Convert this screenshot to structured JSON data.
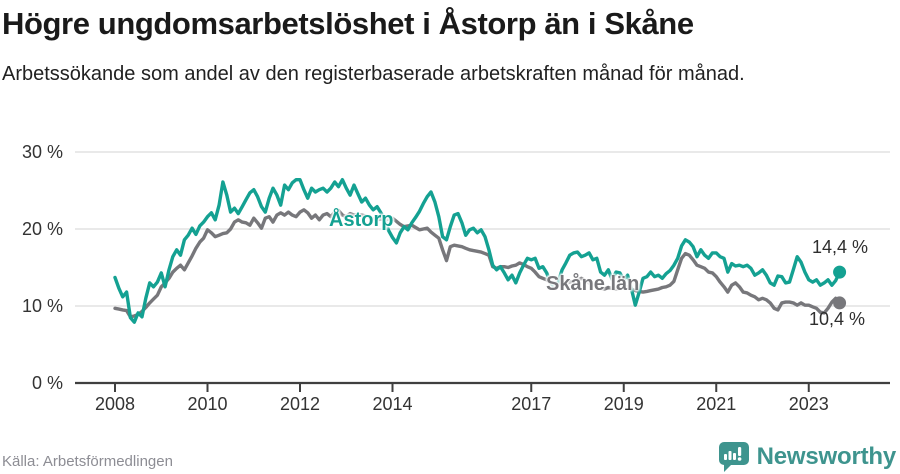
{
  "page": {
    "title": "Högre ungdomsarbetslöshet i Åstorp än i Skåne",
    "subtitle": "Arbetssökande som andel av den registerbaserade arbetskraften månad för månad.",
    "source": "Källa: Arbetsförmedlingen",
    "brand": "Newsworthy"
  },
  "colors": {
    "astorp": "#14a192",
    "skane": "#77777b",
    "grid": "#dcdcdc",
    "axis": "#3f3f3f",
    "tick_text": "#333333",
    "logo": "#3e948e"
  },
  "chart_data": {
    "type": "line",
    "title": "Högre ungdomsarbetslöshet i Åstorp än i Skåne",
    "subtitle": "Arbetssökande som andel av den registerbaserade arbetskraften månad för månad.",
    "x_unit": "month",
    "x_start": "2008-01",
    "x_end": "2023-09",
    "ylim": [
      0,
      30
    ],
    "grid": "horizontal",
    "legend_position": "inline-labels",
    "x_ticks": [
      {
        "year": 2008,
        "label": "2008"
      },
      {
        "year": 2010,
        "label": "2010"
      },
      {
        "year": 2012,
        "label": "2012"
      },
      {
        "year": 2014,
        "label": "2014"
      },
      {
        "year": 2017,
        "label": "2017"
      },
      {
        "year": 2019,
        "label": "2019"
      },
      {
        "year": 2021,
        "label": "2021"
      },
      {
        "year": 2023,
        "label": "2023"
      }
    ],
    "y_ticks": [
      {
        "value": 0,
        "label": "0 %"
      },
      {
        "value": 10,
        "label": "10 %"
      },
      {
        "value": 20,
        "label": "20 %"
      },
      {
        "value": 30,
        "label": "30 %"
      }
    ],
    "series": [
      {
        "name": "Åstorp",
        "color": "#14a192",
        "end_label": "14,4 %",
        "end_value": 14.4,
        "values": [
          13.7,
          12.3,
          11.2,
          11.8,
          8.5,
          7.9,
          9.1,
          8.6,
          11.0,
          13.0,
          12.5,
          13.1,
          14.3,
          12.5,
          14.7,
          16.4,
          17.3,
          16.6,
          18.6,
          19.2,
          20.1,
          19.3,
          20.4,
          20.9,
          21.6,
          22.1,
          21.2,
          23.1,
          26.1,
          24.4,
          22.2,
          22.7,
          22.0,
          22.9,
          23.8,
          24.7,
          25.1,
          24.2,
          22.9,
          22.2,
          24.0,
          25.3,
          24.4,
          23.1,
          25.7,
          25.1,
          26.0,
          26.4,
          26.4,
          25.1,
          24.0,
          25.3,
          24.8,
          25.1,
          25.3,
          24.8,
          25.3,
          26.1,
          25.5,
          26.4,
          25.3,
          24.4,
          25.7,
          24.6,
          23.5,
          24.0,
          23.1,
          22.5,
          22.9,
          22.1,
          21.2,
          19.8,
          18.9,
          18.2,
          19.5,
          20.3,
          19.9,
          20.8,
          21.5,
          22.3,
          23.3,
          24.2,
          24.8,
          23.5,
          21.6,
          19.0,
          18.6,
          20.3,
          21.8,
          22.0,
          20.8,
          19.2,
          19.9,
          20.1,
          19.5,
          19.9,
          19.0,
          17.3,
          15.3,
          14.7,
          15.1,
          14.3,
          13.4,
          14.0,
          13.0,
          14.3,
          15.3,
          16.2,
          16.0,
          16.2,
          14.9,
          15.1,
          14.3,
          13.0,
          12.5,
          13.1,
          14.7,
          15.6,
          16.6,
          16.9,
          17.0,
          16.4,
          16.6,
          16.9,
          16.0,
          16.2,
          14.4,
          14.0,
          14.7,
          13.4,
          14.4,
          14.3,
          13.4,
          14.0,
          12.2,
          10.1,
          11.8,
          13.6,
          13.8,
          14.4,
          13.8,
          14.0,
          13.6,
          14.2,
          14.6,
          15.3,
          16.2,
          17.8,
          18.6,
          18.3,
          17.7,
          16.4,
          17.3,
          16.6,
          16.2,
          16.9,
          16.9,
          16.4,
          16.2,
          14.4,
          15.5,
          15.2,
          15.3,
          15.1,
          15.3,
          14.9,
          14.0,
          14.3,
          14.7,
          14.0,
          13.0,
          12.7,
          13.9,
          13.8,
          13.0,
          13.1,
          14.7,
          16.4,
          15.7,
          14.4,
          13.4,
          13.1,
          13.4,
          12.7,
          13.0,
          13.4,
          12.7,
          13.3,
          14.4
        ]
      },
      {
        "name": "Skåne län",
        "color": "#77777b",
        "end_label": "10,4 %",
        "end_value": 10.4,
        "values": [
          9.7,
          9.6,
          9.5,
          9.4,
          8.6,
          8.7,
          8.9,
          9.3,
          9.8,
          10.4,
          10.9,
          11.4,
          12.5,
          13.0,
          13.6,
          14.4,
          14.9,
          15.3,
          14.7,
          15.6,
          16.5,
          17.5,
          18.3,
          18.8,
          19.9,
          19.5,
          19.0,
          19.2,
          19.4,
          19.5,
          20.0,
          20.9,
          21.2,
          20.9,
          20.8,
          20.5,
          21.4,
          20.8,
          20.1,
          21.4,
          21.6,
          20.9,
          21.8,
          22.1,
          21.8,
          22.2,
          21.8,
          21.6,
          22.2,
          22.5,
          22.1,
          21.4,
          21.8,
          21.2,
          21.8,
          22.0,
          21.6,
          22.2,
          22.4,
          21.8,
          21.6,
          22.0,
          21.8,
          21.9,
          21.8,
          21.7,
          21.5,
          21.3,
          21.2,
          21.3,
          21.2,
          21.3,
          21.4,
          21.0,
          20.6,
          20.3,
          20.4,
          20.5,
          20.2,
          19.9,
          20.0,
          20.1,
          19.6,
          19.2,
          18.8,
          17.3,
          15.9,
          17.7,
          17.9,
          17.8,
          17.7,
          17.5,
          17.3,
          17.2,
          17.1,
          17.0,
          16.8,
          16.6,
          15.1,
          14.9,
          15.1,
          15.1,
          15.0,
          15.2,
          15.3,
          15.6,
          15.4,
          15.1,
          14.9,
          14.4,
          13.8,
          13.6,
          13.4,
          13.0,
          13.0,
          12.9,
          12.7,
          12.9,
          13.1,
          13.2,
          13.4,
          13.6,
          13.3,
          13.0,
          12.7,
          12.5,
          12.3,
          12.2,
          12.4,
          12.3,
          12.2,
          12.3,
          12.4,
          12.5,
          12.2,
          12.0,
          11.9,
          11.8,
          11.9,
          12.0,
          12.1,
          12.2,
          12.4,
          12.5,
          12.7,
          13.2,
          14.7,
          16.2,
          16.8,
          16.6,
          16.0,
          15.3,
          15.1,
          14.9,
          14.4,
          14.3,
          13.8,
          13.1,
          12.5,
          11.8,
          12.7,
          13.0,
          12.5,
          11.8,
          11.7,
          11.4,
          11.2,
          10.8,
          11.0,
          10.8,
          10.4,
          9.7,
          9.5,
          10.4,
          10.5,
          10.5,
          10.4,
          10.1,
          10.4,
          10.1,
          10.1,
          9.9,
          9.7,
          9.2,
          9.1,
          9.7,
          10.5,
          11.0,
          10.4
        ]
      }
    ]
  }
}
